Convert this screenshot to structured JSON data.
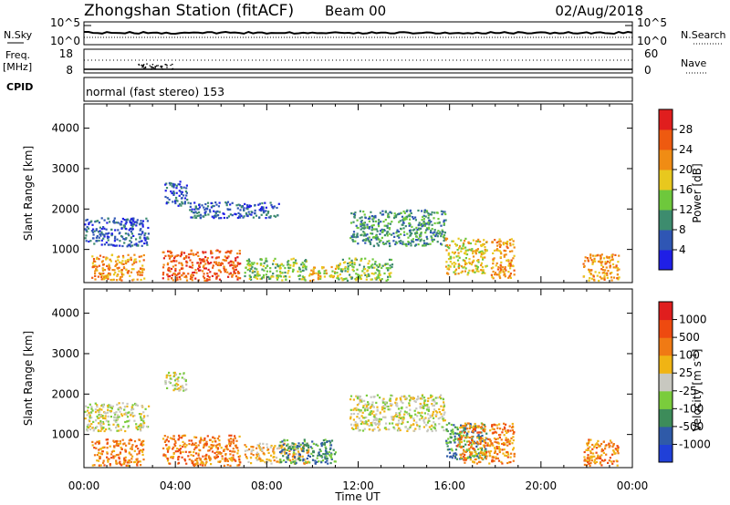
{
  "header": {
    "title": "Zhongshan Station (fitACF)",
    "beam": "Beam 00",
    "date": "02/Aug/2018"
  },
  "nsky_panel": {
    "left_label": "N.Sky",
    "right_label": "N.Search",
    "tick_top": "10^5",
    "tick_bottom": "10^0"
  },
  "freq_panel": {
    "left_label": "Freq.",
    "left_unit": "[MHz]",
    "left_tick_top": "18",
    "left_tick_bottom": "8",
    "right_label": "Nave",
    "right_tick_top": "60",
    "right_tick_bottom": "0"
  },
  "cpid": {
    "label": "CPID",
    "mode": "normal (fast stereo) 153"
  },
  "xaxis": {
    "label": "Time UT",
    "ticks": [
      "00:00",
      "04:00",
      "08:00",
      "12:00",
      "16:00",
      "20:00",
      "00:00"
    ]
  },
  "chart_data": [
    {
      "type": "heatmap",
      "ylabel": "Slant Range [km]",
      "yticks": [
        "1000",
        "2000",
        "3000",
        "4000"
      ],
      "ylim": [
        180,
        4600
      ],
      "xlim": [
        0,
        24
      ],
      "colorbar": {
        "label": "Power [dB]",
        "ticks": [
          "4",
          "8",
          "12",
          "16",
          "20",
          "24",
          "28"
        ],
        "colors": [
          "#1f1fe6",
          "#2f56b4",
          "#3d8c6e",
          "#6ec83c",
          "#e8c81e",
          "#f08c14",
          "#ee5a10",
          "#e01e1e"
        ]
      },
      "regions": [
        {
          "t0": 0.0,
          "t1": 2.8,
          "r0": 1100,
          "r1": 1800,
          "level": 1
        },
        {
          "t0": 0.3,
          "t1": 2.6,
          "r0": 250,
          "r1": 900,
          "level": 5
        },
        {
          "t0": 3.4,
          "t1": 6.8,
          "r0": 250,
          "r1": 1000,
          "level": 6
        },
        {
          "t0": 3.5,
          "t1": 4.5,
          "r0": 2100,
          "r1": 2700,
          "level": 1
        },
        {
          "t0": 4.5,
          "t1": 8.5,
          "r0": 1800,
          "r1": 2200,
          "level": 1
        },
        {
          "t0": 7.0,
          "t1": 9.8,
          "r0": 250,
          "r1": 800,
          "level": 3
        },
        {
          "t0": 9.8,
          "t1": 11.2,
          "r0": 250,
          "r1": 600,
          "level": 4
        },
        {
          "t0": 11.6,
          "t1": 15.8,
          "r0": 1100,
          "r1": 2000,
          "level": 2
        },
        {
          "t0": 11.0,
          "t1": 13.5,
          "r0": 250,
          "r1": 800,
          "level": 3
        },
        {
          "t0": 15.8,
          "t1": 17.6,
          "r0": 400,
          "r1": 1300,
          "level": 4
        },
        {
          "t0": 17.8,
          "t1": 18.8,
          "r0": 300,
          "r1": 1300,
          "level": 5
        },
        {
          "t0": 21.8,
          "t1": 23.4,
          "r0": 250,
          "r1": 900,
          "level": 5
        }
      ]
    },
    {
      "type": "heatmap",
      "ylabel": "Slant Range [km]",
      "yticks": [
        "1000",
        "2000",
        "3000",
        "4000"
      ],
      "ylim": [
        180,
        4600
      ],
      "xlim": [
        0,
        24
      ],
      "colorbar": {
        "label": "Velocity [m s^-1]",
        "ticks": [
          "1000",
          "500",
          "100",
          "25",
          "-25",
          "-100",
          "-500",
          "-1000"
        ],
        "colors": [
          "#2040d8",
          "#2f5aa8",
          "#3d8c5a",
          "#7acc3c",
          "#c8c8c0",
          "#f0b414",
          "#f07a14",
          "#ee4a10",
          "#e01e1e"
        ]
      },
      "regions": [
        {
          "t0": 0.0,
          "t1": 2.8,
          "r0": 1100,
          "r1": 1800,
          "level": 4
        },
        {
          "t0": 0.3,
          "t1": 2.6,
          "r0": 250,
          "r1": 900,
          "level": 6
        },
        {
          "t0": 3.4,
          "t1": 6.8,
          "r0": 250,
          "r1": 1000,
          "level": 6
        },
        {
          "t0": 3.5,
          "t1": 4.5,
          "r0": 2100,
          "r1": 2600,
          "level": 4
        },
        {
          "t0": 7.0,
          "t1": 9.8,
          "r0": 300,
          "r1": 800,
          "level": 5
        },
        {
          "t0": 8.5,
          "t1": 11.0,
          "r0": 300,
          "r1": 900,
          "level": 2
        },
        {
          "t0": 11.6,
          "t1": 15.8,
          "r0": 1100,
          "r1": 2000,
          "level": 4
        },
        {
          "t0": 15.8,
          "t1": 17.6,
          "r0": 400,
          "r1": 1300,
          "level": 2
        },
        {
          "t0": 16.3,
          "t1": 18.8,
          "r0": 300,
          "r1": 1300,
          "level": 6
        },
        {
          "t0": 21.8,
          "t1": 23.4,
          "r0": 250,
          "r1": 900,
          "level": 6
        }
      ]
    }
  ]
}
